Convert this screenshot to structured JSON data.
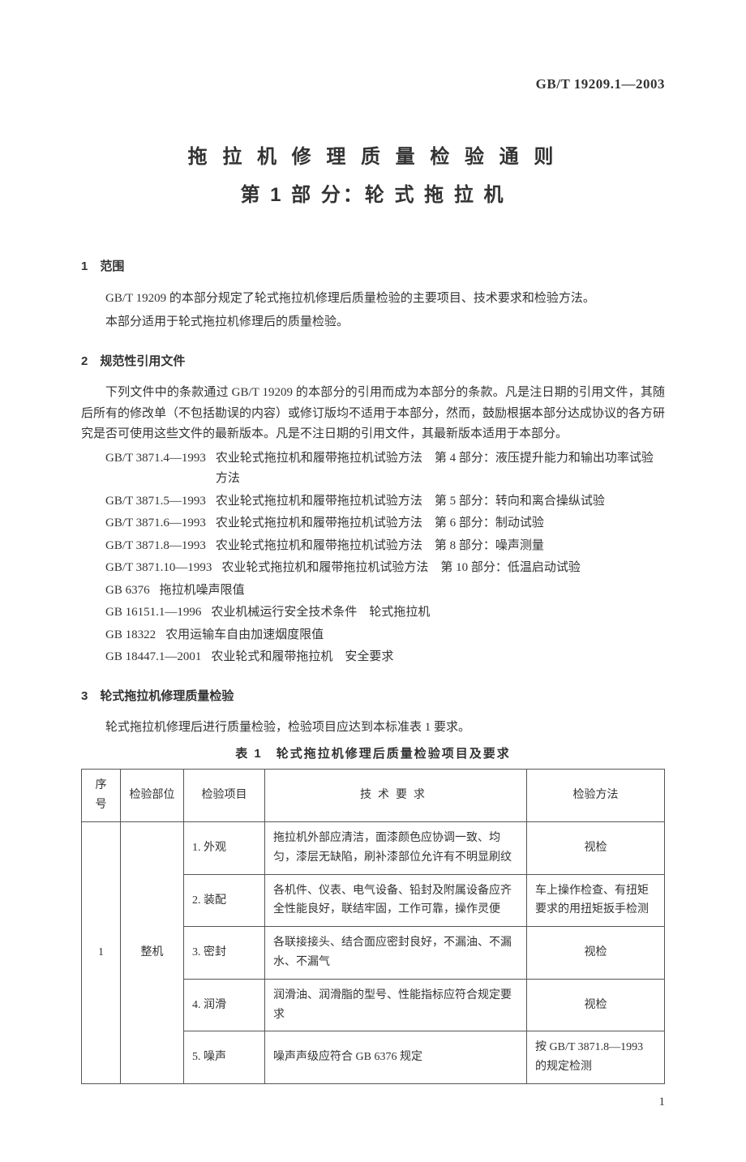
{
  "standardCode": "GB/T 19209.1—2003",
  "titleMain": "拖 拉 机 修 理 质 量 检 验 通 则",
  "titleSub": "第 1 部 分：轮 式 拖 拉 机",
  "sec1": {
    "head": "1　范围",
    "p1": "GB/T 19209 的本部分规定了轮式拖拉机修理后质量检验的主要项目、技术要求和检验方法。",
    "p2": "本部分适用于轮式拖拉机修理后的质量检验。"
  },
  "sec2": {
    "head": "2　规范性引用文件",
    "p1": "下列文件中的条款通过 GB/T 19209 的本部分的引用而成为本部分的条款。凡是注日期的引用文件，其随后所有的修改单（不包括勘误的内容）或修订版均不适用于本部分，然而，鼓励根据本部分达成协议的各方研究是否可使用这些文件的最新版本。凡是不注日期的引用文件，其最新版本适用于本部分。",
    "refs": [
      {
        "code": "GB/T 3871.4—1993",
        "text": "农业轮式拖拉机和履带拖拉机试验方法　第 4 部分：液压提升能力和输出功率试验方法"
      },
      {
        "code": "GB/T 3871.5—1993",
        "text": "农业轮式拖拉机和履带拖拉机试验方法　第 5 部分：转向和离合操纵试验"
      },
      {
        "code": "GB/T 3871.6—1993",
        "text": "农业轮式拖拉机和履带拖拉机试验方法　第 6 部分：制动试验"
      },
      {
        "code": "GB/T 3871.8—1993",
        "text": "农业轮式拖拉机和履带拖拉机试验方法　第 8 部分：噪声测量"
      },
      {
        "code": "GB/T 3871.10—1993",
        "text": "农业轮式拖拉机和履带拖拉机试验方法　第 10 部分：低温启动试验"
      },
      {
        "code": "GB 6376",
        "text": "拖拉机噪声限值"
      },
      {
        "code": "GB 16151.1—1996",
        "text": "农业机械运行安全技术条件　轮式拖拉机"
      },
      {
        "code": "GB 18322",
        "text": "农用运输车自由加速烟度限值"
      },
      {
        "code": "GB 18447.1—2001",
        "text": "农业轮式和履带拖拉机　安全要求"
      }
    ]
  },
  "sec3": {
    "head": "3　轮式拖拉机修理质量检验",
    "p1": "轮式拖拉机修理后进行质量检验，检验项目应达到本标准表 1 要求。",
    "tableCaption": "表 1　轮式拖拉机修理后质量检验项目及要求"
  },
  "table": {
    "headers": {
      "seq": "序号",
      "part": "检验部位",
      "item": "检验项目",
      "req": "技术要求",
      "method": "检验方法"
    },
    "seq": "1",
    "part": "整机",
    "rows": [
      {
        "item": "1. 外观",
        "req": "拖拉机外部应清洁，面漆颜色应协调一致、均匀，漆层无缺陷，刷补漆部位允许有不明显刷纹",
        "method": "视检"
      },
      {
        "item": "2. 装配",
        "req": "各机件、仪表、电气设备、铅封及附属设备应齐全性能良好，联结牢固，工作可靠，操作灵便",
        "method": "车上操作检查、有扭矩要求的用扭矩扳手检测"
      },
      {
        "item": "3. 密封",
        "req": "各联接接头、结合面应密封良好，不漏油、不漏水、不漏气",
        "method": "视检"
      },
      {
        "item": "4. 润滑",
        "req": "润滑油、润滑脂的型号、性能指标应符合规定要求",
        "method": "视检"
      },
      {
        "item": "5. 噪声",
        "req": "噪声声级应符合 GB 6376 规定",
        "method": "按 GB/T 3871.8—1993 的规定检测"
      }
    ]
  },
  "pageNum": "1"
}
